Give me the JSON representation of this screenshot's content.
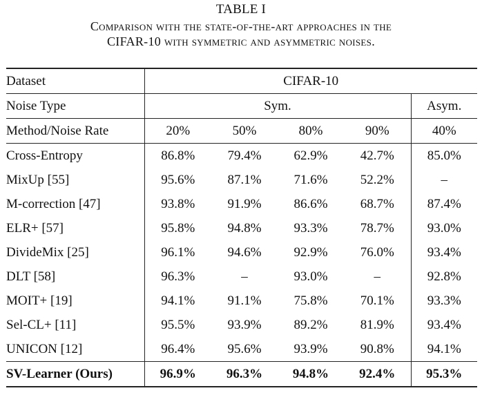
{
  "caption": {
    "title": "TABLE I",
    "line1": "Comparison with the state-of-the-art approaches in the",
    "line2": "CIFAR-10 with symmetric and asymmetric noises."
  },
  "header": {
    "dataset_label": "Dataset",
    "dataset_value": "CIFAR-10",
    "noise_type_label": "Noise Type",
    "sym_label": "Sym.",
    "asym_label": "Asym.",
    "rate_label": "Method/Noise Rate",
    "rates": [
      "20%",
      "50%",
      "80%",
      "90%",
      "40%"
    ]
  },
  "rows": [
    {
      "method": "Cross-Entropy",
      "values": [
        "86.8%",
        "79.4%",
        "62.9%",
        "42.7%",
        "85.0%"
      ]
    },
    {
      "method": "MixUp [55]",
      "values": [
        "95.6%",
        "87.1%",
        "71.6%",
        "52.2%",
        "–"
      ]
    },
    {
      "method": "M-correction [47]",
      "values": [
        "93.8%",
        "91.9%",
        "86.6%",
        "68.7%",
        "87.4%"
      ]
    },
    {
      "method": "ELR+ [57]",
      "values": [
        "95.8%",
        "94.8%",
        "93.3%",
        "78.7%",
        "93.0%"
      ]
    },
    {
      "method": "DivideMix [25]",
      "values": [
        "96.1%",
        "94.6%",
        "92.9%",
        "76.0%",
        "93.4%"
      ]
    },
    {
      "method": "DLT [58]",
      "values": [
        "96.3%",
        "–",
        "93.0%",
        "–",
        "92.8%"
      ]
    },
    {
      "method": "MOIT+ [19]",
      "values": [
        "94.1%",
        "91.1%",
        "75.8%",
        "70.1%",
        "93.3%"
      ]
    },
    {
      "method": "Sel-CL+ [11]",
      "values": [
        "95.5%",
        "93.9%",
        "89.2%",
        "81.9%",
        "93.4%"
      ]
    },
    {
      "method": "UNICON [12]",
      "values": [
        "96.4%",
        "95.6%",
        "93.9%",
        "90.8%",
        "94.1%"
      ]
    },
    {
      "method": "SV-Learner (Ours)",
      "values": [
        "96.9%",
        "96.3%",
        "94.8%",
        "92.4%",
        "95.3%"
      ]
    }
  ]
}
